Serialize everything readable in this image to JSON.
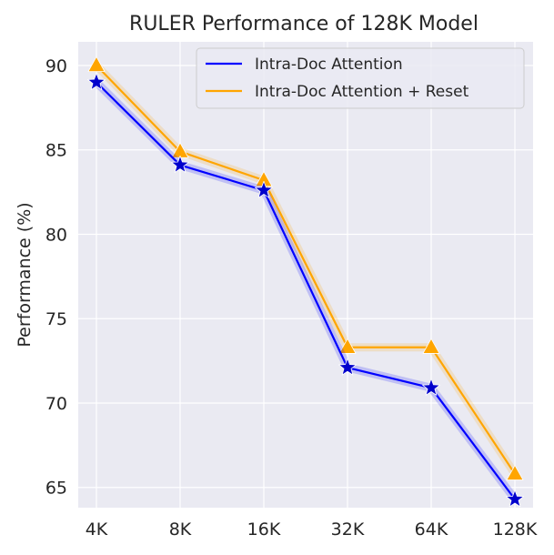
{
  "chart_data": {
    "type": "line",
    "title": "RULER Performance of 128K Model",
    "xlabel": "",
    "ylabel": "Performance (%)",
    "categories": [
      "4K",
      "8K",
      "16K",
      "32K",
      "64K",
      "128K"
    ],
    "ylim": [
      63.8,
      91.4
    ],
    "yticks": [
      65,
      70,
      75,
      80,
      85,
      90
    ],
    "grid": true,
    "legend_position": "top-right",
    "series": [
      {
        "name": "Intra-Doc Attention",
        "values": [
          89.0,
          84.1,
          82.6,
          72.1,
          70.9,
          64.3
        ],
        "color": "#0000ff",
        "marker": "star",
        "marker_color": "#0000cc"
      },
      {
        "name": "Intra-Doc Attention + Reset",
        "values": [
          90.0,
          84.9,
          83.2,
          73.3,
          73.3,
          65.8
        ],
        "color": "#ffa500",
        "marker": "triangle",
        "marker_color": "#ffa500"
      }
    ]
  }
}
